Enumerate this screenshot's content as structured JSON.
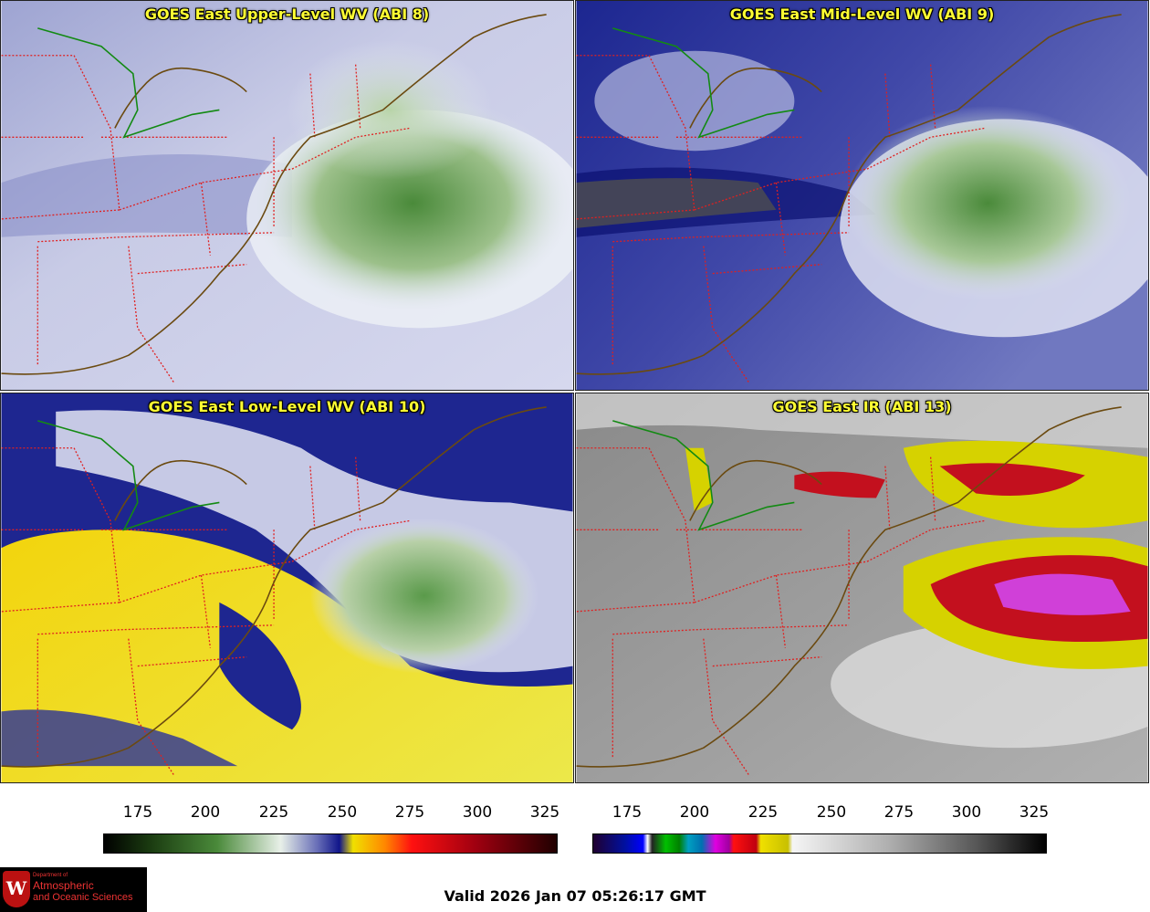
{
  "panels": [
    {
      "title": "GOES East Upper-Level WV (ABI 8)",
      "product": "upper-level-water-vapor"
    },
    {
      "title": "GOES East Mid-Level WV (ABI 9)",
      "product": "mid-level-water-vapor"
    },
    {
      "title": "GOES East Low-Level WV (ABI 10)",
      "product": "low-level-water-vapor"
    },
    {
      "title": "GOES East IR (ABI 13)",
      "product": "infrared"
    }
  ],
  "colorbars": {
    "wv": {
      "ticks": [
        "175",
        "200",
        "225",
        "250",
        "275",
        "300",
        "325"
      ]
    },
    "ir": {
      "ticks": [
        "175",
        "200",
        "225",
        "250",
        "275",
        "300",
        "325"
      ]
    }
  },
  "colors": {
    "state_border": "#e02020",
    "coastline": "#6b4a10",
    "title_text": "#ffff33"
  },
  "logo": {
    "line1": "Department of",
    "line2": "Atmospheric",
    "line3": "and Oceanic Sciences"
  },
  "valid_time": "Valid 2026 Jan 07 05:26:17 GMT"
}
